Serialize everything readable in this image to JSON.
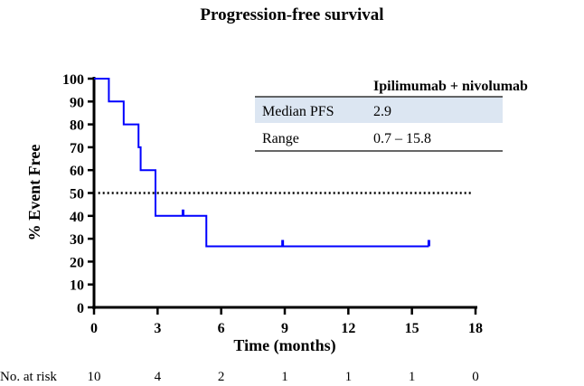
{
  "chart_data": {
    "type": "line",
    "subtype": "kaplan-meier",
    "title": "Progression-free survival",
    "xlabel": "Time (months)",
    "ylabel": "% Event Free",
    "xlim": [
      0,
      18
    ],
    "ylim": [
      0,
      100
    ],
    "xticks": [
      0,
      3,
      6,
      9,
      12,
      15,
      18
    ],
    "yticks": [
      0,
      10,
      20,
      30,
      40,
      50,
      60,
      70,
      80,
      90,
      100
    ],
    "reference_line": {
      "y": 50,
      "style": "dotted"
    },
    "series": [
      {
        "name": "Ipilimumab + nivolumab",
        "color": "#0000ff",
        "steps": [
          {
            "x": 0,
            "y": 100
          },
          {
            "x": 0.7,
            "y": 90
          },
          {
            "x": 1.4,
            "y": 80
          },
          {
            "x": 2.1,
            "y": 70
          },
          {
            "x": 2.2,
            "y": 60
          },
          {
            "x": 2.9,
            "y": 40
          },
          {
            "x": 5.3,
            "y": 26.7
          }
        ],
        "end_x": 15.8,
        "censored": [
          {
            "x": 4.2,
            "y": 40
          },
          {
            "x": 8.9,
            "y": 26.7
          },
          {
            "x": 15.8,
            "y": 26.7
          }
        ]
      }
    ],
    "table": {
      "header": "Ipilimumab + nivolumab",
      "rows": [
        {
          "label": "Median PFS",
          "value": "2.9"
        },
        {
          "label": "Range",
          "value": "0.7 – 15.8"
        }
      ],
      "highlight_color": "#dce6f2"
    },
    "risk_table": {
      "label": "No. at risk",
      "values": [
        "10",
        "4",
        "2",
        "1",
        "1",
        "1",
        "0"
      ]
    }
  }
}
